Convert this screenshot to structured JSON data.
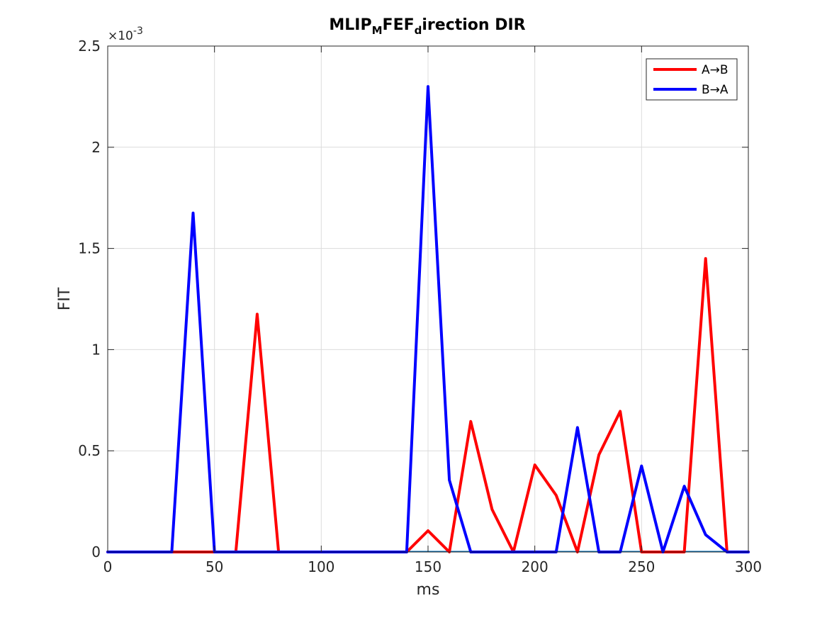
{
  "chart_data": {
    "type": "line",
    "title": {
      "parts": [
        {
          "text": "MLIP",
          "sub": false
        },
        {
          "text": "M",
          "sub": true
        },
        {
          "text": "FEF",
          "sub": false
        },
        {
          "text": "d",
          "sub": true
        },
        {
          "text": "irection DIR",
          "sub": false
        }
      ]
    },
    "xlabel": "ms",
    "ylabel": "FIT",
    "xlim": [
      0,
      300
    ],
    "ylim": [
      0,
      0.0025
    ],
    "xticks": [
      0,
      50,
      100,
      150,
      200,
      250,
      300
    ],
    "yticks": [
      0,
      0.0005,
      0.001,
      0.0015,
      0.002,
      0.0025
    ],
    "xtick_labels": [
      "0",
      "50",
      "100",
      "150",
      "200",
      "250",
      "300"
    ],
    "ytick_labels": [
      "0",
      "0.5",
      "1",
      "1.5",
      "2",
      "2.5"
    ],
    "y_exponent_label": {
      "base": "×10",
      "exp": "-3"
    },
    "grid": true,
    "legend_position": "top-right",
    "x": [
      0,
      10,
      20,
      30,
      40,
      50,
      60,
      70,
      80,
      90,
      100,
      110,
      120,
      130,
      140,
      150,
      160,
      170,
      180,
      190,
      200,
      210,
      220,
      230,
      240,
      250,
      260,
      270,
      280,
      290,
      300
    ],
    "series": [
      {
        "name": "A→B",
        "color": "#ff0000",
        "values": [
          0,
          0,
          0,
          0,
          0,
          0,
          0,
          0.001175,
          0,
          0,
          0,
          0,
          0,
          0,
          0,
          0.000105,
          0,
          0.000645,
          0.00021,
          0,
          0.00043,
          0.00028,
          0,
          0.00048,
          0.000695,
          0,
          0,
          0,
          0.00145,
          0,
          0
        ]
      },
      {
        "name": "B→A",
        "color": "#0000ff",
        "values": [
          0,
          0,
          0,
          0,
          0.001675,
          0,
          0,
          0,
          0,
          0,
          0,
          0,
          0,
          0,
          0,
          0.0023,
          0.000355,
          0,
          0,
          0,
          0,
          0,
          0.000615,
          0,
          0,
          0.000425,
          0,
          0.000325,
          8.5e-05,
          0,
          0
        ]
      }
    ],
    "baseline_color": "#0072bd"
  }
}
